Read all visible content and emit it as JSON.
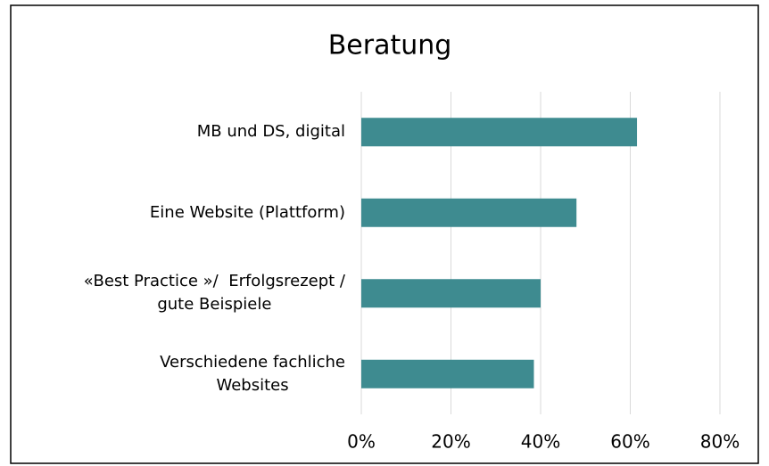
{
  "chart_data": {
    "type": "hbar",
    "title": "Beratung",
    "categories": [
      "MB und DS, digital",
      "Eine Website (Plattform)",
      "«Best Practice »/  Erfolgsrezept /\ngute Beispiele",
      "Verschiedene fachliche\nWebsites"
    ],
    "values": [
      61.5,
      48,
      40,
      38.5
    ],
    "color": "#3e8b90",
    "xlim": [
      0,
      80
    ],
    "xticks": [
      {
        "value": 0,
        "label": "0%"
      },
      {
        "value": 20,
        "label": "20%"
      },
      {
        "value": 40,
        "label": "40%"
      },
      {
        "value": 60,
        "label": "60%"
      },
      {
        "value": 80,
        "label": "80%"
      }
    ],
    "grid": true
  }
}
